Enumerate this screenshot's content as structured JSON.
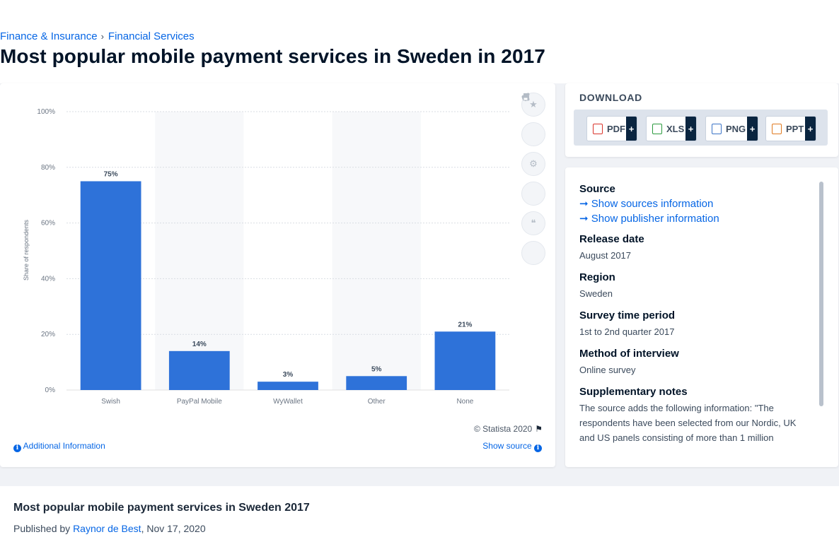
{
  "breadcrumb": {
    "items": [
      "Finance & Insurance",
      "Financial Services"
    ],
    "separator": "›"
  },
  "page_title": "Most popular mobile payment services in Sweden in 2017",
  "chart_data": {
    "type": "bar",
    "categories": [
      "Swish",
      "PayPal Mobile",
      "WyWallet",
      "Other",
      "None"
    ],
    "values": [
      75,
      14,
      3,
      5,
      21
    ],
    "data_labels": [
      "75%",
      "14%",
      "3%",
      "5%",
      "21%"
    ],
    "ylabel": "Share of respondents",
    "xlabel": "",
    "ylim": [
      0,
      100
    ],
    "yticks": [
      "0%",
      "20%",
      "40%",
      "60%",
      "80%",
      "100%"
    ],
    "bar_color": "#2e72d9",
    "grid": true
  },
  "chart_footer": {
    "copyright": "© Statista 2020",
    "additional_info": "Additional Information",
    "show_source": "Show source"
  },
  "download": {
    "title": "DOWNLOAD",
    "buttons": [
      {
        "label": "PDF",
        "color": "#d9342b"
      },
      {
        "label": "XLS",
        "color": "#2b9a3e"
      },
      {
        "label": "PNG",
        "color": "#3b74c7"
      },
      {
        "label": "PPT",
        "color": "#e07a20"
      }
    ],
    "plus": "+"
  },
  "source_panel": {
    "source_heading": "Source",
    "show_sources": "Show sources information",
    "show_publisher": "Show publisher information",
    "release_date_heading": "Release date",
    "release_date": "August 2017",
    "region_heading": "Region",
    "region": "Sweden",
    "survey_period_heading": "Survey time period",
    "survey_period": "1st to 2nd quarter 2017",
    "method_heading": "Method of interview",
    "method": "Online survey",
    "notes_heading": "Supplementary notes",
    "notes": "The source adds the following information: \"The respondents have been selected from our Nordic, UK and US panels consisting of more than 1 million"
  },
  "footer": {
    "title": "Most popular mobile payment services in Sweden 2017",
    "published_by": "Published by",
    "author": "Raynor de Best",
    "date": ", Nov 17, 2020"
  }
}
